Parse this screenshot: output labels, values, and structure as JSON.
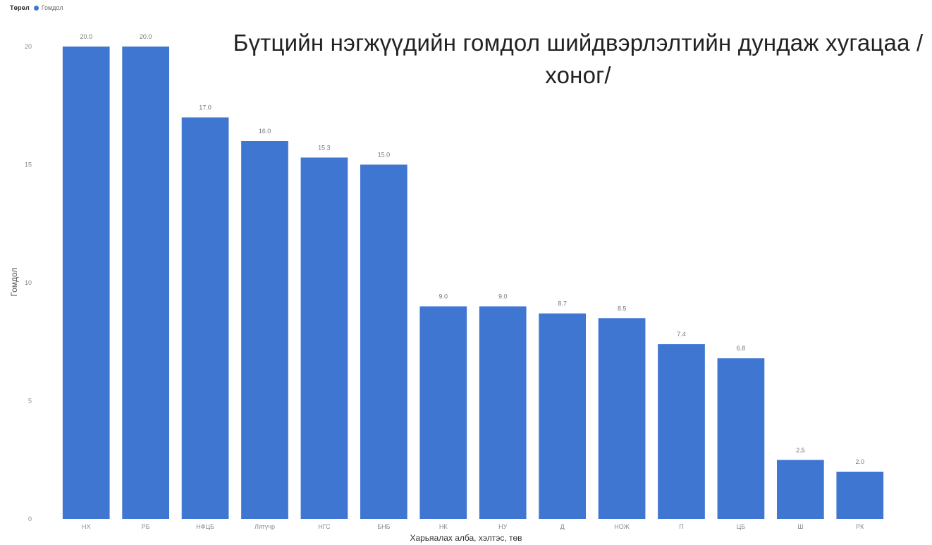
{
  "legend": {
    "title": "Төрөл",
    "label": "Гомдол"
  },
  "colors": {
    "bar": "#3f76d2",
    "axis_text": "#8a8a8a",
    "data_label": "#777777"
  },
  "chart_data": {
    "type": "bar",
    "title": "Бүтцийн нэгжүүдийн гомдол шийдвэрлэлтийн дундаж хугацаа /хоног/",
    "xlabel": "Харьяалах алба, хэлтэс, төв",
    "ylabel": "Гомдол",
    "ylim": [
      0,
      20
    ],
    "yticks": [
      0,
      5,
      10,
      15,
      20
    ],
    "grid": false,
    "legend_position": "top-left",
    "categories": [
      "НХ",
      "РБ",
      "НФЦБ",
      "Лятүчр",
      "НГС",
      "БНБ",
      "НК",
      "НУ",
      "Д",
      "НОЖ",
      "П",
      "ЦБ",
      "Ш",
      "РК"
    ],
    "series": [
      {
        "name": "Гомдол",
        "values": [
          20.0,
          20.0,
          17.0,
          16.0,
          15.3,
          15.0,
          9.0,
          9.0,
          8.7,
          8.5,
          7.4,
          6.8,
          2.5,
          2.0
        ],
        "labels": [
          "20.0",
          "20.0",
          "17.0",
          "16.0",
          "15.3",
          "15.0",
          "9.0",
          "9.0",
          "8.7",
          "8.5",
          "7.4",
          "6.8",
          "2.5",
          "2.0"
        ]
      }
    ]
  }
}
